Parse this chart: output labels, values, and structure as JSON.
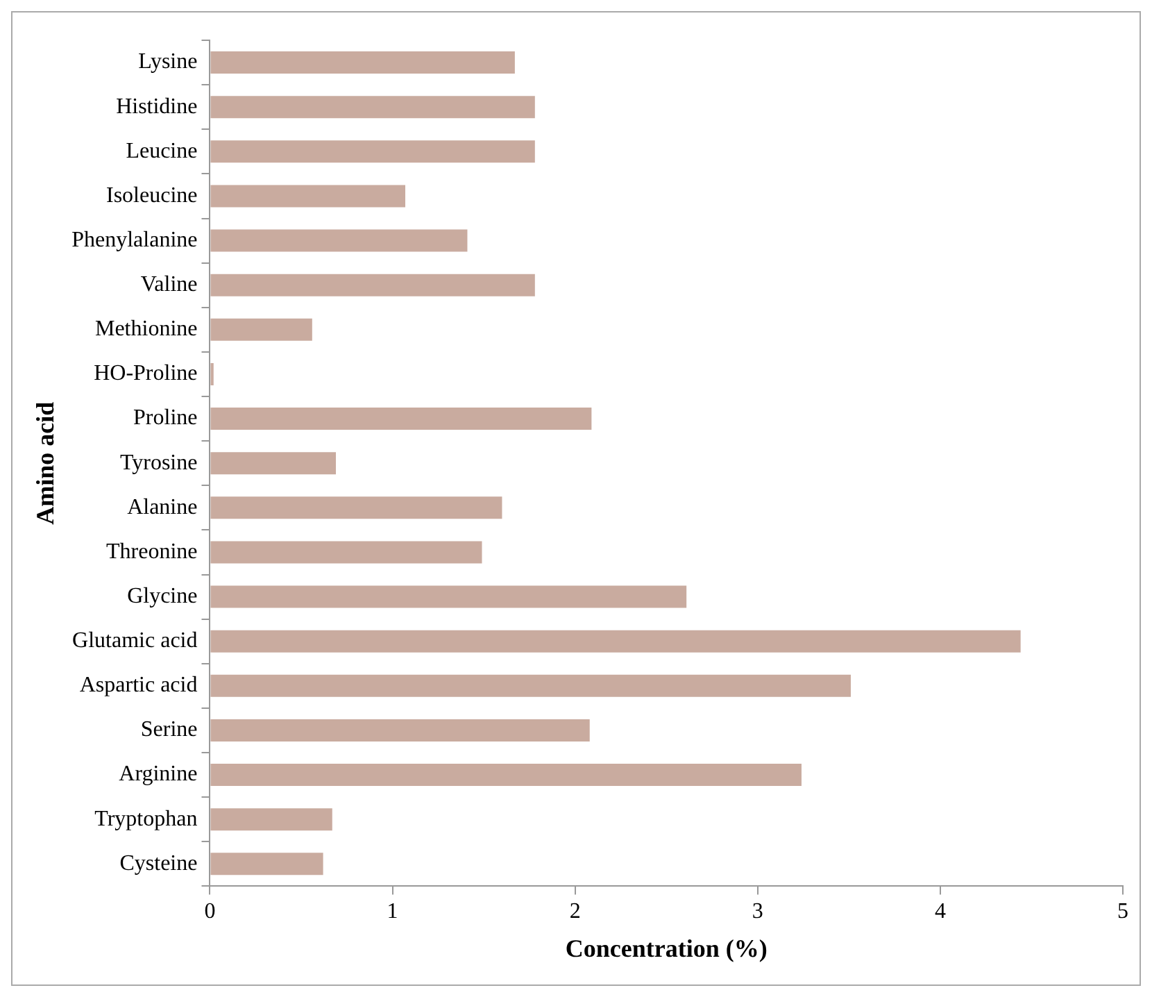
{
  "chart_data": {
    "type": "bar",
    "orientation": "horizontal",
    "xlabel": "Concentration (%)",
    "ylabel": "Amino acid",
    "categories": [
      "Lysine",
      "Histidine",
      "Leucine",
      "Isoleucine",
      "Phenylalanine",
      "Valine",
      "Methionine",
      "HO-Proline",
      "Proline",
      "Tyrosine",
      "Alanine",
      "Threonine",
      "Glycine",
      "Glutamic acid",
      "Aspartic acid",
      "Serine",
      "Arginine",
      "Tryptophan",
      "Cysteine"
    ],
    "values": [
      1.67,
      1.78,
      1.78,
      1.07,
      1.41,
      1.78,
      0.56,
      0.02,
      2.09,
      0.69,
      1.6,
      1.49,
      2.61,
      4.44,
      3.51,
      2.08,
      3.24,
      0.67,
      0.62
    ],
    "color": "#c9ab9f",
    "xlim": [
      0,
      5
    ],
    "xticks": [
      0,
      1,
      2,
      3,
      4,
      5
    ],
    "grid": false,
    "legend": false
  }
}
